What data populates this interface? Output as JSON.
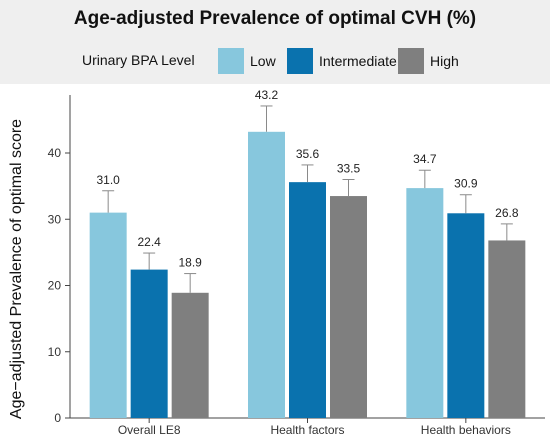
{
  "title": "Age-adjusted Prevalence of optimal CVH (%)",
  "legend": {
    "title": "Urinary BPA Level",
    "items": [
      {
        "label": "Low",
        "color": "#87c7dd"
      },
      {
        "label": "Intermediate",
        "color": "#0a72ae"
      },
      {
        "label": "High",
        "color": "#7f7f7f"
      }
    ]
  },
  "chart_data": {
    "type": "bar",
    "title": "Age-adjusted Prevalence of optimal CVH (%)",
    "ylabel": "Age−adjusted Prevalence of optimal score",
    "xlabel": "",
    "ylim": [
      0,
      48
    ],
    "yticks": [
      0,
      10,
      20,
      30,
      40
    ],
    "grid": false,
    "legend_placement": "top",
    "error_bars": true,
    "categories": [
      "Overall LE8",
      "Health factors",
      "Health behaviors"
    ],
    "series": [
      {
        "name": "Low",
        "color": "#87c7dd",
        "values": [
          31.0,
          43.2,
          34.7
        ],
        "error_upper": [
          3.3,
          3.9,
          2.7
        ]
      },
      {
        "name": "Intermediate",
        "color": "#0a72ae",
        "values": [
          22.4,
          35.6,
          30.9
        ],
        "error_upper": [
          2.5,
          2.6,
          2.8
        ]
      },
      {
        "name": "High",
        "color": "#7f7f7f",
        "values": [
          18.9,
          33.5,
          26.8
        ],
        "error_upper": [
          2.9,
          2.5,
          2.5
        ]
      }
    ],
    "value_labels": [
      [
        "31.0",
        "43.2",
        "34.7"
      ],
      [
        "22.4",
        "35.6",
        "30.9"
      ],
      [
        "18.9",
        "33.5",
        "26.8"
      ]
    ]
  }
}
